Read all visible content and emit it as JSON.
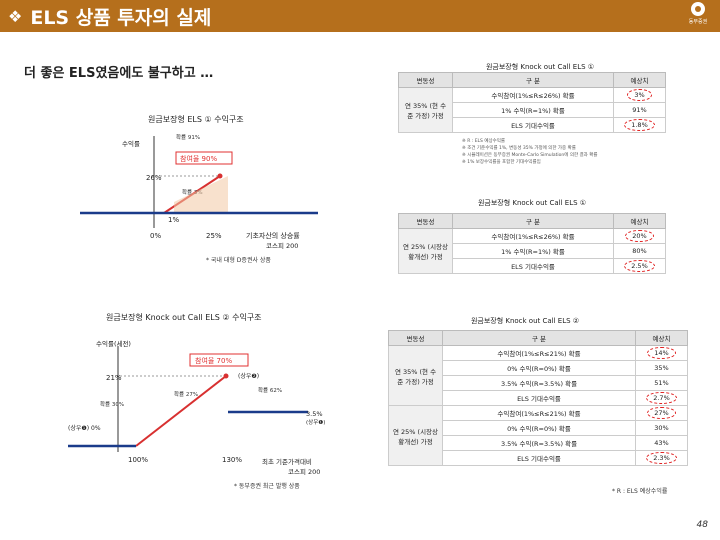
{
  "header": {
    "bullet": "❖",
    "title": "ELS 상품 투자의 실제",
    "logo_text": "동부증권"
  },
  "subtitle": "더 좋은 ELS였음에도 불구하고 …",
  "fig1": {
    "title": "원금보장형 ELS ① 수익구조",
    "ylabel": "수익률",
    "x_labels": [
      "0%",
      "25%"
    ],
    "xlabel": "기초자산의 상승률",
    "xlabel2": "코스피 200",
    "y_labels": [
      "26%",
      "1%"
    ],
    "ann_top": "확률 91%",
    "ann_part": "참여율 90%",
    "ann_mid": "확률 3%",
    "note": "* 국내 대형 D증권사 상품"
  },
  "fig2": {
    "title": "원금보장형 Knock out Call ELS ② 수익구조",
    "ylabel": "수익률(세전)",
    "ann_part": "참여율 70%",
    "y21": "21%",
    "y35": "3.5%",
    "y35b": "(상우❶)",
    "y0": "(상우❶) 0%",
    "x100": "100%",
    "x130": "130%",
    "xlabel": "최초 기준가격대비",
    "xlabel2": "코스피 200",
    "p30": "확률 30%",
    "p27": "확률 27%",
    "p62": "확률 62%",
    "ko": "(상우❷)",
    "note": "* 동부증권 최근 발행 상품"
  },
  "t1": {
    "title": "원금보장형 Knock out Call ELS ①",
    "headers": [
      "변동성",
      "구 분",
      "예상치"
    ],
    "group": "연 35% (현 수준 가정) 가정",
    "rows": [
      {
        "label": "수익참여(1%≤R≤26%) 확률",
        "value": "3%"
      },
      {
        "label": "1% 수익(R=1%) 확률",
        "value": "91%"
      },
      {
        "label": "ELS 기대수익률",
        "value": "1.8%"
      }
    ],
    "notes": [
      "※ R : ELS 예상수익률",
      "※ 조건 기준수익률 1%, 변동성 35% 가정에 의한 가중 확률",
      "※ 시뮬레이션은 동부증권 Monte-Carlo Simulation에 의한 결과 확률",
      "※ 1% 보장수익률을 포함한 기대수익률임"
    ]
  },
  "t2": {
    "title": "원금보장형 Knock out Call ELS ①",
    "headers": [
      "변동성",
      "구 분",
      "예상치"
    ],
    "group": "연 25% (시장상황개선) 가정",
    "rows": [
      {
        "label": "수익참여(1%≤R≤26%) 확률",
        "value": "20%"
      },
      {
        "label": "1% 수익(R=1%) 확률",
        "value": "80%"
      },
      {
        "label": "ELS 기대수익률",
        "value": "2.5%"
      }
    ]
  },
  "t3": {
    "title": "원금보장형 Knock out Call ELS ②",
    "headers": [
      "변동성",
      "구 분",
      "예상치"
    ],
    "group1": "연 35% (현 수준 가정) 가정",
    "rows1": [
      {
        "label": "수익참여(1%≤R≤21%) 확률",
        "value": "14%"
      },
      {
        "label": "0% 수익(R=0%) 확률",
        "value": "35%"
      },
      {
        "label": "3.5% 수익(R=3.5%) 확률",
        "value": "51%"
      },
      {
        "label": "ELS 기대수익률",
        "value": "2.7%"
      }
    ],
    "group2": "연 25% (시장상황개선) 가정",
    "rows2": [
      {
        "label": "수익참여(1%≤R≤21%) 확률",
        "value": "27%"
      },
      {
        "label": "0% 수익(R=0%) 확률",
        "value": "30%"
      },
      {
        "label": "3.5% 수익(R=3.5%) 확률",
        "value": "43%"
      },
      {
        "label": "ELS 기대수익률",
        "value": "2.3%"
      }
    ],
    "note": "* R : ELS 예상수익률"
  },
  "page_number": "48"
}
